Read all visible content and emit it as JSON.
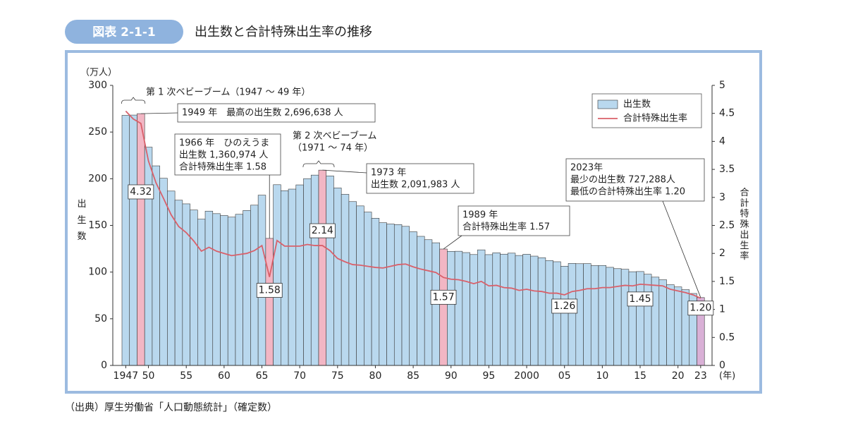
{
  "header": {
    "badge": "図表 2-1-1",
    "title": "出生数と合計特殊出生率の推移"
  },
  "source": "（出典）厚生労働省「人口動態統計」（確定数）",
  "chart_data": {
    "type": "bar-line",
    "y_unit": "（万人）",
    "y_label": "出生数",
    "y2_label": "合計特殊出生率",
    "x_unit": "(年)",
    "categories": [
      "1947",
      null,
      null,
      "50",
      null,
      null,
      null,
      null,
      "55",
      null,
      null,
      null,
      null,
      "60",
      null,
      null,
      null,
      null,
      "65",
      null,
      null,
      null,
      null,
      "70",
      null,
      null,
      null,
      null,
      "75",
      null,
      null,
      null,
      null,
      "80",
      null,
      null,
      null,
      null,
      "85",
      null,
      null,
      null,
      null,
      "90",
      null,
      null,
      null,
      null,
      "95",
      null,
      null,
      null,
      null,
      "2000",
      null,
      null,
      null,
      null,
      "05",
      null,
      null,
      null,
      null,
      "10",
      null,
      null,
      null,
      null,
      "15",
      null,
      null,
      null,
      null,
      "20",
      null,
      null,
      "23"
    ],
    "ylim": [
      0,
      300
    ],
    "yticks": [
      0,
      50,
      100,
      150,
      200,
      250,
      300
    ],
    "y2lim": [
      0,
      5
    ],
    "y2ticks": [
      0,
      0.5,
      1,
      1.5,
      2,
      2.5,
      3,
      3.5,
      4,
      4.5,
      5
    ],
    "legend": "top-right",
    "series": [
      {
        "name": "出生数",
        "type": "bar",
        "color": "#b9d8ee",
        "colors": [
          "#b9d8ee",
          "#b9d8ee",
          "#f2b6c4",
          "#b9d8ee",
          "#b9d8ee",
          "#b9d8ee",
          "#b9d8ee",
          "#b9d8ee",
          "#b9d8ee",
          "#b9d8ee",
          "#b9d8ee",
          "#b9d8ee",
          "#b9d8ee",
          "#b9d8ee",
          "#b9d8ee",
          "#b9d8ee",
          "#b9d8ee",
          "#b9d8ee",
          "#b9d8ee",
          "#f2b6c4",
          "#b9d8ee",
          "#b9d8ee",
          "#b9d8ee",
          "#b9d8ee",
          "#b9d8ee",
          "#b9d8ee",
          "#f2b6c4",
          "#b9d8ee",
          "#b9d8ee",
          "#b9d8ee",
          "#b9d8ee",
          "#b9d8ee",
          "#b9d8ee",
          "#b9d8ee",
          "#b9d8ee",
          "#b9d8ee",
          "#b9d8ee",
          "#b9d8ee",
          "#b9d8ee",
          "#b9d8ee",
          "#b9d8ee",
          "#b9d8ee",
          "#f2b6c4",
          "#b9d8ee",
          "#b9d8ee",
          "#b9d8ee",
          "#b9d8ee",
          "#b9d8ee",
          "#b9d8ee",
          "#b9d8ee",
          "#b9d8ee",
          "#b9d8ee",
          "#b9d8ee",
          "#b9d8ee",
          "#b9d8ee",
          "#b9d8ee",
          "#b9d8ee",
          "#b9d8ee",
          "#b9d8ee",
          "#b9d8ee",
          "#b9d8ee",
          "#b9d8ee",
          "#b9d8ee",
          "#b9d8ee",
          "#b9d8ee",
          "#b9d8ee",
          "#b9d8ee",
          "#b9d8ee",
          "#b9d8ee",
          "#b9d8ee",
          "#b9d8ee",
          "#b9d8ee",
          "#b9d8ee",
          "#b9d8ee",
          "#b9d8ee",
          "#b9d8ee",
          "#d9b0d6"
        ],
        "values": [
          267.9,
          268.2,
          269.7,
          233.8,
          213.8,
          200.5,
          186.8,
          177.0,
          173.1,
          166.5,
          156.7,
          165.3,
          162.6,
          160.6,
          158.9,
          161.9,
          166.0,
          171.7,
          182.4,
          136.1,
          193.6,
          187.2,
          188.9,
          193.4,
          200.1,
          203.9,
          209.2,
          203.0,
          190.1,
          183.3,
          175.5,
          170.9,
          164.3,
          157.7,
          152.9,
          151.5,
          150.9,
          149.0,
          143.2,
          138.3,
          134.7,
          131.4,
          124.7,
          122.2,
          122.3,
          120.9,
          118.8,
          123.8,
          118.7,
          120.7,
          119.2,
          120.3,
          117.8,
          119.1,
          117.1,
          115.4,
          112.4,
          111.1,
          106.3,
          109.3,
          109.0,
          109.1,
          107.0,
          107.1,
          105.1,
          103.7,
          103.0,
          100.4,
          100.6,
          97.7,
          94.6,
          91.8,
          86.5,
          84.1,
          81.2,
          77.1,
          72.7
        ]
      },
      {
        "name": "合計特殊出生率",
        "type": "line",
        "axis": "y2",
        "color": "#d9606a",
        "values": [
          4.54,
          4.4,
          4.32,
          3.65,
          3.26,
          2.98,
          2.69,
          2.48,
          2.37,
          2.22,
          2.04,
          2.11,
          2.04,
          2.0,
          1.96,
          1.98,
          2.0,
          2.05,
          2.14,
          1.58,
          2.23,
          2.13,
          2.13,
          2.13,
          2.16,
          2.14,
          2.14,
          2.05,
          1.91,
          1.85,
          1.8,
          1.79,
          1.77,
          1.75,
          1.74,
          1.77,
          1.8,
          1.81,
          1.76,
          1.72,
          1.69,
          1.66,
          1.57,
          1.54,
          1.53,
          1.5,
          1.46,
          1.5,
          1.42,
          1.43,
          1.39,
          1.38,
          1.34,
          1.36,
          1.33,
          1.32,
          1.29,
          1.29,
          1.26,
          1.32,
          1.34,
          1.37,
          1.37,
          1.39,
          1.39,
          1.41,
          1.43,
          1.42,
          1.45,
          1.44,
          1.43,
          1.42,
          1.36,
          1.33,
          1.3,
          1.26,
          1.2
        ],
        "value_labels": [
          null,
          null,
          "4.32",
          null,
          null,
          null,
          null,
          null,
          null,
          null,
          null,
          null,
          null,
          null,
          null,
          null,
          null,
          null,
          null,
          "1.58",
          null,
          null,
          null,
          null,
          null,
          null,
          "2.14",
          null,
          null,
          null,
          null,
          null,
          null,
          null,
          null,
          null,
          null,
          null,
          null,
          null,
          null,
          null,
          "1.57",
          null,
          null,
          null,
          null,
          null,
          null,
          null,
          null,
          null,
          null,
          null,
          null,
          null,
          null,
          null,
          "1.26",
          null,
          null,
          null,
          null,
          null,
          null,
          null,
          null,
          null,
          "1.45",
          null,
          null,
          null,
          null,
          null,
          null,
          null,
          "1.20"
        ]
      }
    ],
    "annotations": [
      {
        "lines": [
          "第 1 次ベビーブーム（1947 ～ 49 年）"
        ]
      },
      {
        "lines": [
          "1949 年　最高の出生数 2,696,638 人"
        ]
      },
      {
        "lines": [
          "1966 年　ひのえうま",
          "出生数 1,360,974 人",
          "合計特殊出生率 1.58"
        ]
      },
      {
        "lines": [
          "第 2 次ベビーブーム",
          "（1971 ～ 74 年）"
        ]
      },
      {
        "lines": [
          "1973 年",
          "出生数 2,091,983 人"
        ]
      },
      {
        "lines": [
          "1989 年",
          "合計特殊出生率 1.57"
        ]
      },
      {
        "lines": [
          "2023年",
          "最少の出生数 727,288人",
          "最低の合計特殊出生率 1.20"
        ]
      }
    ]
  }
}
